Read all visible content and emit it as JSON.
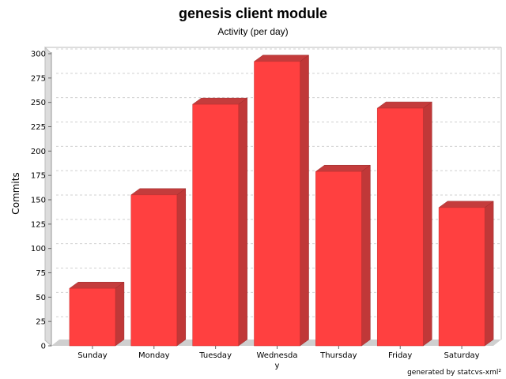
{
  "chart_data": {
    "type": "bar",
    "title": "genesis client module",
    "subtitle": "Activity (per day)",
    "xlabel": "",
    "ylabel": "Commits",
    "categories": [
      "Sunday",
      "Monday",
      "Tuesday",
      "Wednesday",
      "Thursday",
      "Friday",
      "Saturday"
    ],
    "values": [
      59,
      155,
      248,
      292,
      179,
      244,
      142
    ],
    "ylim": [
      0,
      300
    ],
    "yticks": [
      0,
      25,
      50,
      75,
      100,
      125,
      150,
      175,
      200,
      225,
      250,
      275,
      300
    ],
    "grid": true,
    "legend": "none",
    "style": "3d",
    "colors": {
      "bar_front": "#ff4040",
      "bar_top": "#c43c3c",
      "bar_side": "#c03838",
      "wall": "#dcdcdc",
      "grid": "#d0d0d0"
    }
  },
  "footer": "generated by statcvs-xml²"
}
